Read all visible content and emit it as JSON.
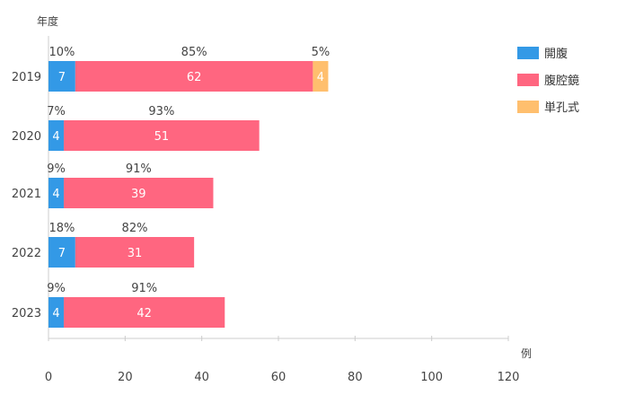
{
  "chart_data": {
    "type": "bar",
    "orientation": "horizontal",
    "stacked": true,
    "title": "",
    "ylabel": "年度",
    "xlabel": "例",
    "categories": [
      "2019",
      "2020",
      "2021",
      "2022",
      "2023"
    ],
    "series": [
      {
        "name": "開腹",
        "color": "#3399e6",
        "values": [
          7,
          4,
          4,
          7,
          4
        ],
        "percents": [
          "10%",
          "7%",
          "9%",
          "18%",
          "9%"
        ]
      },
      {
        "name": "腹腔鏡",
        "color": "#ff6680",
        "values": [
          62,
          51,
          39,
          31,
          42
        ],
        "percents": [
          "85%",
          "93%",
          "91%",
          "82%",
          "91%"
        ]
      },
      {
        "name": "単孔式",
        "color": "#ffbf6e",
        "values": [
          4,
          null,
          null,
          null,
          null
        ],
        "percents": [
          "5%",
          null,
          null,
          null,
          null
        ]
      }
    ],
    "xlim": [
      0,
      120
    ],
    "xticks": [
      0,
      20,
      40,
      60,
      80,
      100,
      120
    ],
    "grid": false,
    "legend_position": "top-right"
  }
}
